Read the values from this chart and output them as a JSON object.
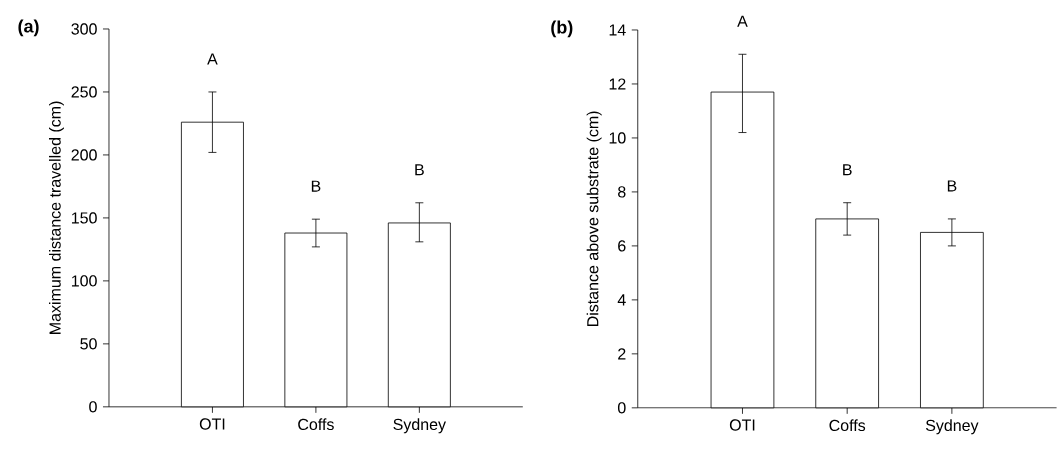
{
  "chart_data": [
    {
      "type": "bar",
      "title": "(a)",
      "ylabel": "Maximum distance travelled (cm)",
      "categories": [
        "OTI",
        "Coffs",
        "Sydney"
      ],
      "values": [
        226,
        138,
        146
      ],
      "errors": [
        [
          202,
          250
        ],
        [
          127,
          149
        ],
        [
          131,
          162
        ]
      ],
      "color": "#ffffff",
      "ylim": [
        0,
        300
      ],
      "yticks": [
        0,
        50,
        100,
        150,
        200,
        250,
        300
      ],
      "annotations": [
        "A",
        "B",
        "B"
      ]
    },
    {
      "type": "bar",
      "title": "(b)",
      "ylabel": "Distance above substrate (cm)",
      "categories": [
        "OTI",
        "Coffs",
        "Sydney"
      ],
      "values": [
        11.7,
        7.0,
        6.5
      ],
      "errors": [
        [
          10.2,
          13.1
        ],
        [
          6.4,
          7.6
        ],
        [
          6.0,
          7.0
        ]
      ],
      "color": "#ffffff",
      "ylim": [
        0,
        14
      ],
      "yticks": [
        0,
        2,
        4,
        6,
        8,
        10,
        12,
        14
      ],
      "annotations": [
        "A",
        "B",
        "B"
      ]
    }
  ]
}
